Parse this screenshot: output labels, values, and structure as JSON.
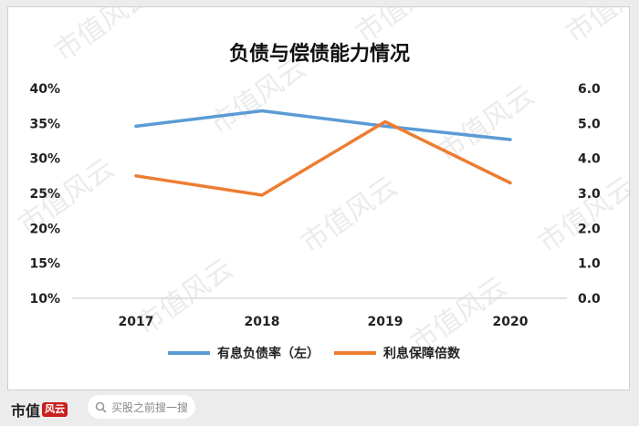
{
  "chart_data": {
    "type": "line",
    "title": "负债与偿债能力情况",
    "categories": [
      "2017",
      "2018",
      "2019",
      "2020"
    ],
    "series": [
      {
        "name": "有息负债率（左）",
        "axis": "left",
        "color": "#5b9bd5",
        "values": [
          34.6,
          36.8,
          34.6,
          32.7
        ]
      },
      {
        "name": "利息保障倍数",
        "axis": "right",
        "color": "#ed7d31",
        "values": [
          3.5,
          2.95,
          5.05,
          3.3
        ]
      }
    ],
    "y_left": {
      "ylim": [
        10,
        40
      ],
      "ticks": [
        "10%",
        "15%",
        "20%",
        "25%",
        "30%",
        "35%",
        "40%"
      ]
    },
    "y_right": {
      "ylim": [
        0,
        6
      ],
      "ticks": [
        "0.0",
        "1.0",
        "2.0",
        "3.0",
        "4.0",
        "5.0",
        "6.0"
      ]
    },
    "grid": false,
    "legend": "bottom"
  },
  "watermark": "市值风云",
  "footer": {
    "brand": "市值",
    "brand_mark": "风云",
    "search_placeholder": "买股之前搜一搜"
  }
}
